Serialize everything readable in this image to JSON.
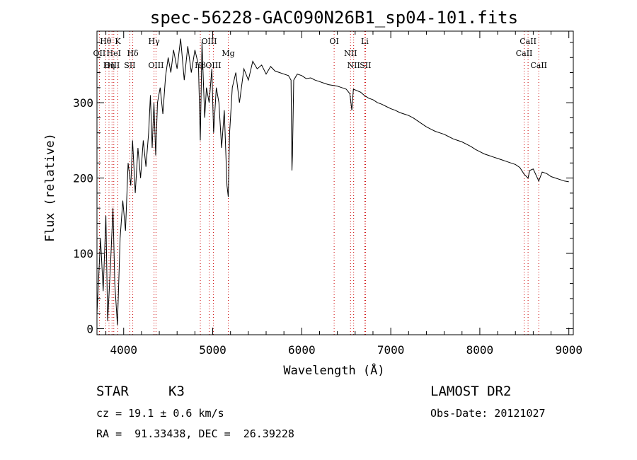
{
  "chart_data": {
    "type": "line",
    "title": "spec-56228-GAC090N26B1_sp04-101.fits",
    "xlabel": "Wavelength (Å)",
    "ylabel": "Flux (relative)",
    "xlim": [
      3700,
      9050
    ],
    "ylim": [
      -8,
      395
    ],
    "x_ticks": [
      4000,
      5000,
      6000,
      7000,
      8000,
      9000
    ],
    "y_ticks": [
      0,
      100,
      200,
      300
    ],
    "grid": false,
    "line_color": "#000000",
    "marker_color": "#cc0000",
    "spectral_lines": [
      {
        "label": "Hθ",
        "wavelength": 3798,
        "row": 0
      },
      {
        "label": "K",
        "wavelength": 3934,
        "row": 0
      },
      {
        "label": "Hγ",
        "wavelength": 4341,
        "row": 0
      },
      {
        "label": "OIII",
        "wavelength": 4960,
        "row": 0
      },
      {
        "label": "OI",
        "wavelength": 6364,
        "row": 0
      },
      {
        "label": "Li",
        "wavelength": 6708,
        "row": 0
      },
      {
        "label": "CaII",
        "wavelength": 8542,
        "row": 0
      },
      {
        "label": "OII",
        "wavelength": 3727,
        "row": 1
      },
      {
        "label": "HeI",
        "wavelength": 3889,
        "row": 1
      },
      {
        "label": "Hδ",
        "wavelength": 4102,
        "row": 1
      },
      {
        "label": "Mg",
        "wavelength": 5175,
        "row": 1
      },
      {
        "label": "NII",
        "wavelength": 6548,
        "row": 1
      },
      {
        "label": "CaII",
        "wavelength": 8498,
        "row": 1
      },
      {
        "label": "OIII",
        "wavelength": 3869,
        "row": 2
      },
      {
        "label": "Hη",
        "wavelength": 3835,
        "row": 2
      },
      {
        "label": "SII",
        "wavelength": 4069,
        "row": 2
      },
      {
        "label": "OIII",
        "wavelength": 4363,
        "row": 2
      },
      {
        "label": "Hβ",
        "wavelength": 4861,
        "row": 2
      },
      {
        "label": "OIII",
        "wavelength": 5007,
        "row": 2
      },
      {
        "label": "NII",
        "wavelength": 6583,
        "row": 2
      },
      {
        "label": "SII",
        "wavelength": 6716,
        "row": 2
      },
      {
        "label": "CaII",
        "wavelength": 8662,
        "row": 2
      }
    ],
    "series": [
      {
        "x": [
          3700,
          3740,
          3770,
          3800,
          3820,
          3850,
          3880,
          3900,
          3930,
          3960,
          3990,
          4020,
          4050,
          4080,
          4100,
          4130,
          4160,
          4190,
          4220,
          4250,
          4280,
          4300,
          4320,
          4340,
          4360,
          4380,
          4410,
          4440,
          4470,
          4500,
          4530,
          4560,
          4600,
          4640,
          4680,
          4720,
          4760,
          4800,
          4840,
          4861,
          4880,
          4910,
          4930,
          4960,
          4990,
          5010,
          5040,
          5070,
          5100,
          5130,
          5160,
          5175,
          5190,
          5220,
          5260,
          5300,
          5350,
          5400,
          5450,
          5500,
          5550,
          5600,
          5650,
          5700,
          5750,
          5800,
          5850,
          5880,
          5890,
          5896,
          5910,
          5950,
          6000,
          6050,
          6100,
          6150,
          6200,
          6250,
          6300,
          6350,
          6400,
          6450,
          6500,
          6540,
          6563,
          6580,
          6620,
          6660,
          6700,
          6750,
          6800,
          6850,
          6900,
          6950,
          7000,
          7050,
          7100,
          7150,
          7200,
          7250,
          7300,
          7350,
          7400,
          7450,
          7500,
          7550,
          7600,
          7650,
          7700,
          7750,
          7800,
          7850,
          7900,
          7950,
          8000,
          8050,
          8100,
          8150,
          8200,
          8250,
          8300,
          8350,
          8400,
          8450,
          8498,
          8542,
          8560,
          8600,
          8662,
          8700,
          8750,
          8800,
          8850,
          8900,
          8950,
          9000
        ],
        "y": [
          20,
          120,
          50,
          150,
          10,
          80,
          160,
          60,
          5,
          120,
          170,
          130,
          220,
          190,
          250,
          180,
          240,
          200,
          250,
          215,
          260,
          310,
          240,
          300,
          230,
          300,
          320,
          285,
          335,
          360,
          340,
          370,
          345,
          385,
          330,
          375,
          340,
          370,
          350,
          250,
          380,
          280,
          320,
          300,
          345,
          260,
          320,
          300,
          240,
          290,
          190,
          175,
          260,
          320,
          340,
          300,
          345,
          330,
          355,
          345,
          350,
          338,
          348,
          342,
          340,
          338,
          336,
          330,
          210,
          230,
          330,
          338,
          336,
          332,
          333,
          330,
          328,
          326,
          324,
          323,
          322,
          320,
          318,
          312,
          290,
          318,
          316,
          314,
          310,
          306,
          304,
          300,
          298,
          295,
          292,
          290,
          287,
          285,
          283,
          280,
          276,
          272,
          268,
          265,
          262,
          260,
          258,
          255,
          252,
          250,
          248,
          245,
          242,
          238,
          235,
          232,
          230,
          228,
          226,
          224,
          222,
          220,
          218,
          214,
          205,
          200,
          210,
          212,
          196,
          208,
          206,
          202,
          200,
          198,
          196,
          195
        ]
      }
    ]
  },
  "info": {
    "star_label": "STAR",
    "spectral_type": "K3",
    "cz": "cz = 19.1 ± 0.6 km/s",
    "ra_dec": "RA =  91.33438, DEC =  26.39228",
    "survey": "LAMOST DR2",
    "obs_date": "Obs-Date: 20121027"
  }
}
